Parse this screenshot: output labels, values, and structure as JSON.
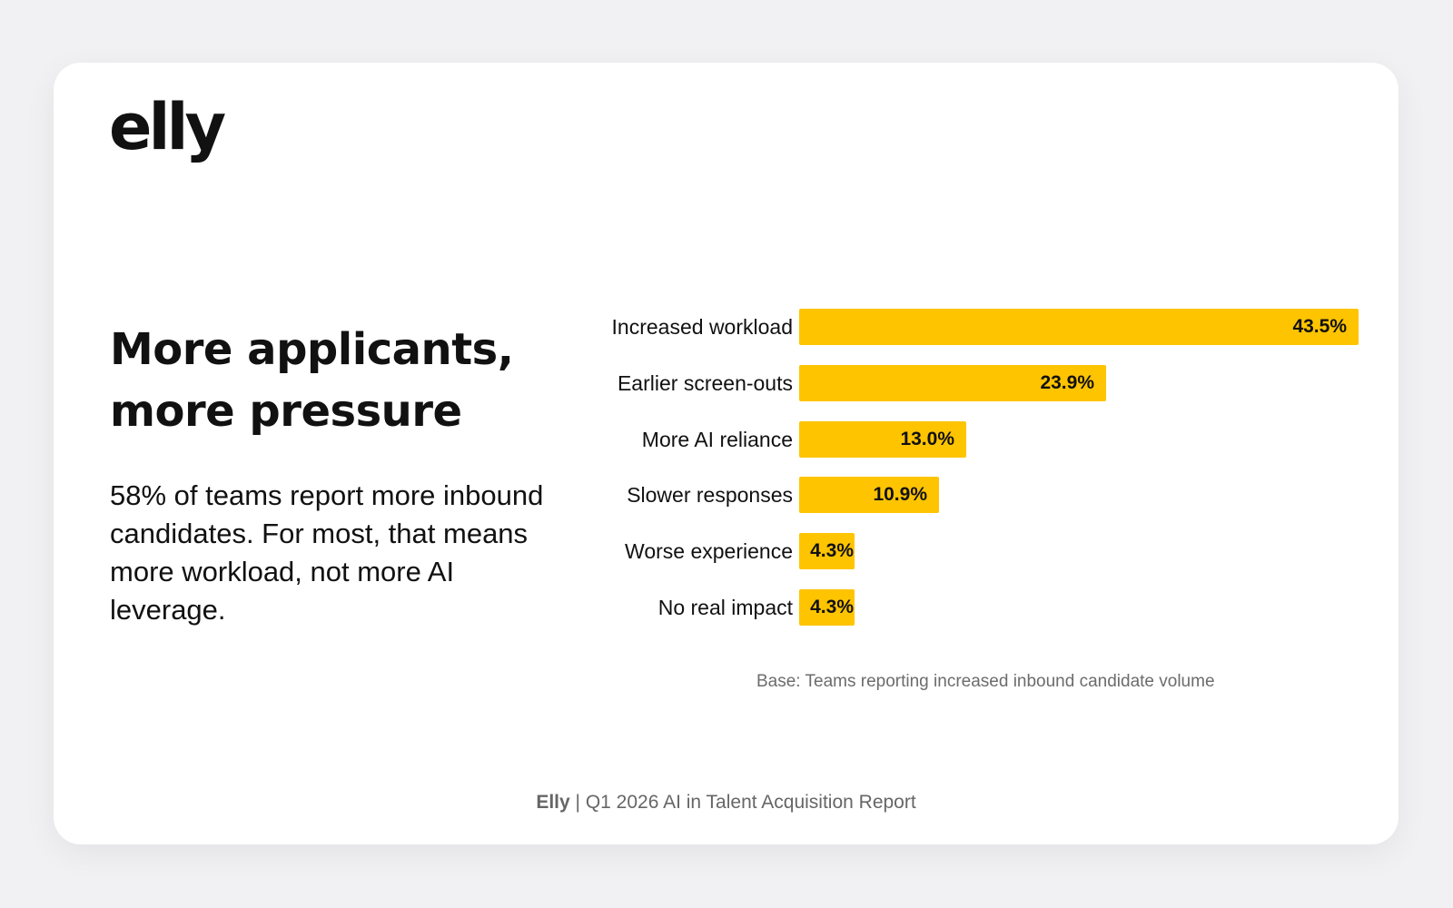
{
  "logo": {
    "text": "elly"
  },
  "headline": "More applicants, more pressure",
  "summary": "58% of teams report more inbound candidates. For most, that means more workload, not more AI leverage.",
  "colors": {
    "bar": "#ffc400",
    "card": "#ffffff",
    "background": "#f1f0f2"
  },
  "chart_data": {
    "type": "bar",
    "orientation": "horizontal",
    "categories": [
      "Increased workload",
      "Earlier screen-outs",
      "More AI reliance",
      "Slower responses",
      "Worse experience",
      "No real impact"
    ],
    "values": [
      43.5,
      23.9,
      13.0,
      10.9,
      4.3,
      4.3
    ],
    "value_labels": [
      "43.5%",
      "23.9%",
      "13.0%",
      "10.9%",
      "4.3%",
      "4.3%"
    ],
    "unit": "%",
    "xlim": [
      0,
      43.5
    ],
    "grid": false,
    "legend": "none"
  },
  "base_note": "Base: Teams reporting increased inbound candidate volume",
  "footer": {
    "brand": "Elly",
    "separator": "|",
    "report": "Q1 2026 AI in Talent Acquisition Report"
  }
}
